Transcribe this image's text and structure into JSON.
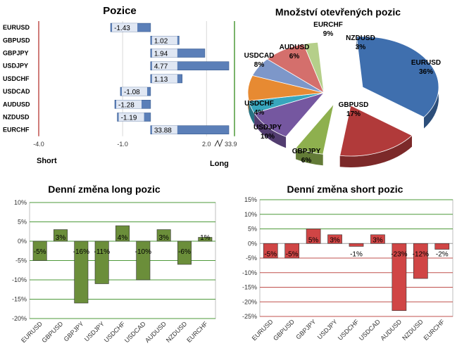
{
  "chart_data": [
    {
      "type": "bar",
      "orientation": "horizontal",
      "title": "Pozice",
      "categories": [
        "EURUSD",
        "GBPUSD",
        "GBPJPY",
        "USDJPY",
        "USDCHF",
        "USDCAD",
        "AUDUSD",
        "NZDUSD",
        "EURCHF"
      ],
      "values": [
        -1.43,
        1.02,
        1.94,
        4.77,
        1.13,
        -1.08,
        -1.28,
        -1.19,
        33.88
      ],
      "value_labels": [
        "-1.43",
        "1.02",
        "1.94",
        "4.77",
        "1.13",
        "-1.08",
        "-1.28",
        "-1.19",
        "33.88"
      ],
      "xlim": [
        -4.0,
        3.0
      ],
      "xticks": [
        "-4.0",
        "-1.0",
        "2.0"
      ],
      "axis_break_label": "33.9",
      "short_label": "Short",
      "long_label": "Long",
      "colors": {
        "bar": "#5b7fb8",
        "short_line": "#c0504d",
        "long_line": "#4e9a3a",
        "grid": "#d9d9d9"
      }
    },
    {
      "type": "pie",
      "title": "Množství otevřených pozic",
      "slices": [
        {
          "label": "EURUSD",
          "pct": "36%",
          "value": 36,
          "color": "#3f6fae"
        },
        {
          "label": "GBPUSD",
          "pct": "17%",
          "value": 17,
          "color": "#b13a3a"
        },
        {
          "label": "GBPJPY",
          "pct": "6%",
          "value": 6,
          "color": "#8eb04e"
        },
        {
          "label": "USDJPY",
          "pct": "10%",
          "value": 10,
          "color": "#7557a0"
        },
        {
          "label": "USDCHF",
          "pct": "4%",
          "value": 4,
          "color": "#38a6bd"
        },
        {
          "label": "USDCAD",
          "pct": "8%",
          "value": 8,
          "color": "#e78a32"
        },
        {
          "label": "AUDUSD",
          "pct": "6%",
          "value": 6,
          "color": "#7d97c9"
        },
        {
          "label": "EURCHF",
          "pct": "9%",
          "value": 9,
          "color": "#d46f6c"
        },
        {
          "label": "NZDUSD",
          "pct": "3%",
          "value": 3,
          "color": "#b5cf8a"
        }
      ]
    },
    {
      "type": "bar",
      "title": "Denní změna long pozic",
      "categories": [
        "EURUSD",
        "GBPUSD",
        "GBPJPY",
        "USDJPY",
        "USDCHF",
        "USDCAD",
        "AUDUSD",
        "NZDUSD",
        "EURCHF"
      ],
      "values": [
        -5,
        3,
        -16,
        -11,
        4,
        -10,
        3,
        -6,
        1
      ],
      "value_labels": [
        "-5%",
        "3%",
        "-16%",
        "-11%",
        "4%",
        "-10%",
        "3%",
        "-6%",
        "1%"
      ],
      "ylim": [
        -20,
        10
      ],
      "yticks": [
        "-20%",
        "-15%",
        "-10%",
        "-5%",
        "0%",
        "5%",
        "10%"
      ],
      "colors": {
        "bar": "#6b8e3a",
        "grid": "#4e9a3a"
      }
    },
    {
      "type": "bar",
      "title": "Denní změna short pozic",
      "categories": [
        "EURUSD",
        "GBPUSD",
        "GBPJPY",
        "USDJPY",
        "USDCHF",
        "USDCAD",
        "AUDUSD",
        "NZDUSD",
        "EURCHF"
      ],
      "values": [
        -5,
        -5,
        5,
        3,
        -1,
        3,
        -23,
        -12,
        -2
      ],
      "value_labels": [
        "-5%",
        "-5%",
        "5%",
        "3%",
        "-1%",
        "3%",
        "-23%",
        "-12%",
        "-2%"
      ],
      "ylim": [
        -25,
        15
      ],
      "yticks": [
        "-25%",
        "-20%",
        "-15%",
        "-10%",
        "-5%",
        "0%",
        "5%",
        "10%",
        "15%"
      ],
      "colors": {
        "bar": "#d04545",
        "grid_pos": "#4e9a3a",
        "grid_neg": "#c0504d"
      }
    }
  ]
}
